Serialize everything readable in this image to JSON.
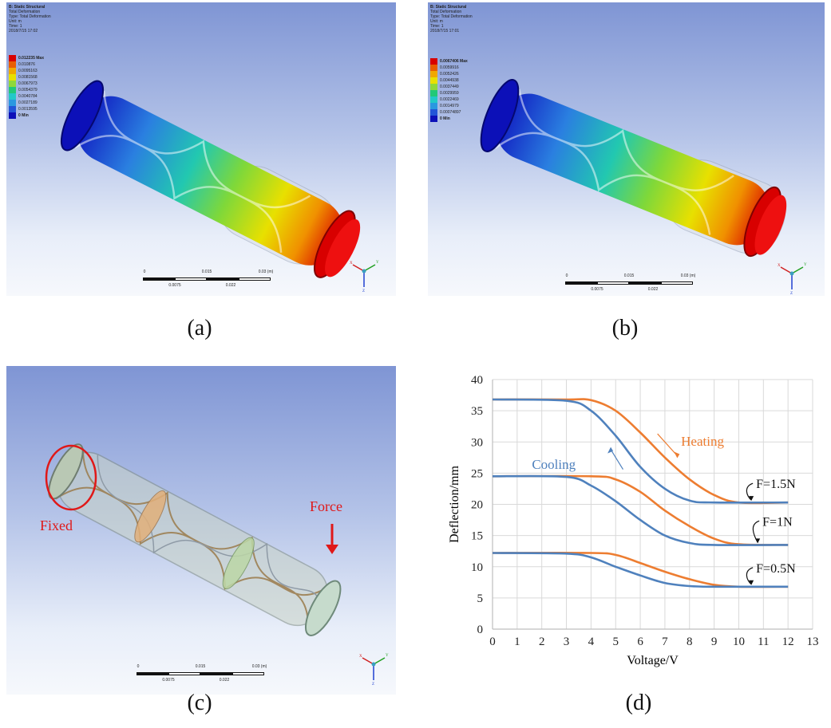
{
  "panel_a": {
    "info": [
      "B: Static Structural",
      "Total Deformation",
      "Type: Total Deformation",
      "Unit: m",
      "Time: 1",
      "2018/7/15 17:02"
    ],
    "legend": [
      "0.012235 Max",
      "0.010876",
      "0.0095163",
      "0.0081568",
      "0.0067973",
      "0.0054379",
      "0.0040784",
      "0.0027189",
      "0.0013595",
      "0 Min"
    ],
    "scale": {
      "top": [
        "0",
        "0.015",
        "0.03 (m)"
      ],
      "bottom": [
        "0.0075",
        "0.022"
      ]
    },
    "caption": "(a)"
  },
  "panel_b": {
    "info": [
      "B: Static Structural",
      "Total Deformation",
      "Type: Total Deformation",
      "Unit: m",
      "Time: 1",
      "2018/7/15 17:01"
    ],
    "legend": [
      "0.0067406 Max",
      "0.0059916",
      "0.0052426",
      "0.0044938",
      "0.0037449",
      "0.0029959",
      "0.0022469",
      "0.0014979",
      "0.00074897",
      "0 Min"
    ],
    "scale": {
      "top": [
        "0",
        "0.015",
        "0.03 (m)"
      ],
      "bottom": [
        "0.0075",
        "0.022"
      ]
    },
    "caption": "(b)"
  },
  "panel_c": {
    "labels": {
      "fixed": "Fixed",
      "force": "Force"
    },
    "scale": {
      "top": [
        "0",
        "0.015",
        "0.03 (m)"
      ],
      "bottom": [
        "0.0075",
        "0.022"
      ]
    },
    "caption": "(c)"
  },
  "panel_d": {
    "caption": "(d)"
  },
  "triad_axes": {
    "x": "X",
    "y": "Y",
    "z": "Z"
  },
  "legend_colors": [
    "#d80000",
    "#e85d00",
    "#f0a800",
    "#e8e000",
    "#8ed83a",
    "#22c878",
    "#22c8c8",
    "#2a98e0",
    "#2255d8",
    "#0c10b8"
  ],
  "chart_data": {
    "type": "line",
    "xlabel": "Voltage/V",
    "ylabel": "Deflection/mm",
    "xlim": [
      0,
      13
    ],
    "ylim": [
      0,
      40
    ],
    "xticks": [
      0,
      1,
      2,
      3,
      4,
      5,
      6,
      7,
      8,
      9,
      10,
      11,
      12,
      13
    ],
    "yticks": [
      0,
      5,
      10,
      15,
      20,
      25,
      30,
      35,
      40
    ],
    "grid": true,
    "colors": {
      "heating": "#ed7d31",
      "cooling": "#4f81bd"
    },
    "annotations": {
      "heating": "Heating",
      "cooling": "Cooling"
    },
    "series": [
      {
        "label": "F=1.5N",
        "heating": [
          [
            0,
            36.8
          ],
          [
            3,
            36.8
          ],
          [
            4,
            36.7
          ],
          [
            5,
            35.0
          ],
          [
            6,
            31.5
          ],
          [
            7,
            27.5
          ],
          [
            8,
            24.0
          ],
          [
            9,
            21.5
          ],
          [
            10,
            20.3
          ],
          [
            12,
            20.3
          ]
        ],
        "cooling": [
          [
            0,
            36.8
          ],
          [
            3,
            36.6
          ],
          [
            4,
            35.0
          ],
          [
            5,
            31.0
          ],
          [
            6,
            26.0
          ],
          [
            7,
            22.5
          ],
          [
            8,
            20.6
          ],
          [
            9,
            20.3
          ],
          [
            12,
            20.3
          ]
        ]
      },
      {
        "label": "F=1N",
        "heating": [
          [
            0,
            24.5
          ],
          [
            4,
            24.5
          ],
          [
            5,
            24.0
          ],
          [
            6,
            22.0
          ],
          [
            7,
            19.0
          ],
          [
            8,
            16.5
          ],
          [
            9,
            14.5
          ],
          [
            10,
            13.6
          ],
          [
            12,
            13.5
          ]
        ],
        "cooling": [
          [
            0,
            24.5
          ],
          [
            3,
            24.4
          ],
          [
            4,
            23.0
          ],
          [
            5,
            20.5
          ],
          [
            6,
            17.5
          ],
          [
            7,
            15.0
          ],
          [
            8,
            13.8
          ],
          [
            9,
            13.5
          ],
          [
            12,
            13.5
          ]
        ]
      },
      {
        "label": "F=0.5N",
        "heating": [
          [
            0,
            12.2
          ],
          [
            4,
            12.2
          ],
          [
            5,
            11.9
          ],
          [
            6,
            10.6
          ],
          [
            7,
            9.2
          ],
          [
            8,
            8.0
          ],
          [
            9,
            7.1
          ],
          [
            10,
            6.8
          ],
          [
            12,
            6.8
          ]
        ],
        "cooling": [
          [
            0,
            12.2
          ],
          [
            3,
            12.1
          ],
          [
            4,
            11.5
          ],
          [
            5,
            10.0
          ],
          [
            6,
            8.6
          ],
          [
            7,
            7.4
          ],
          [
            8,
            6.9
          ],
          [
            9,
            6.8
          ],
          [
            12,
            6.8
          ]
        ]
      }
    ]
  }
}
